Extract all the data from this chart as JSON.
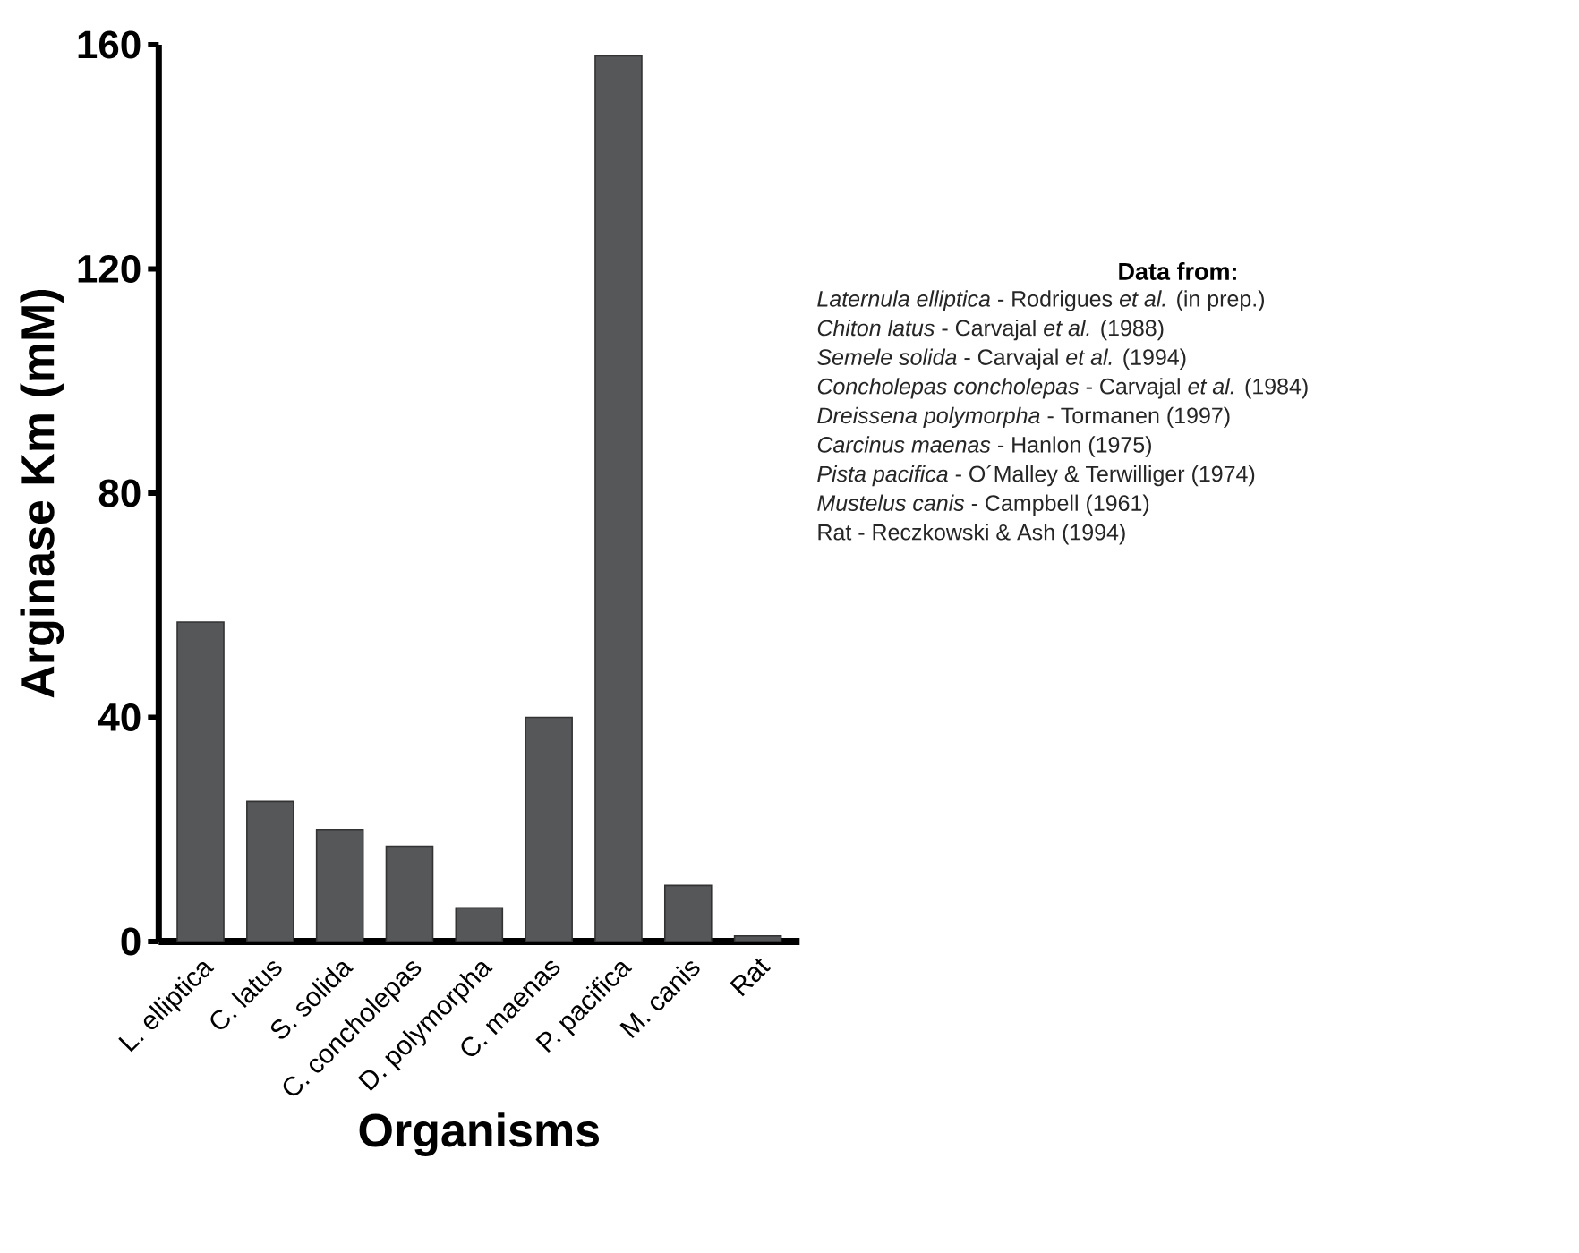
{
  "chart_data": {
    "type": "bar",
    "xlabel": "Organisms",
    "ylabel": "Arginase Km (mM)",
    "categories": [
      "L. elliptica",
      "C. latus",
      "S. solida",
      "C. concholepas",
      "D. polymorpha",
      "C. maenas",
      "P. pacifica",
      "M. canis",
      "Rat"
    ],
    "values": [
      57,
      25,
      20,
      17,
      6,
      40,
      158,
      10,
      1
    ],
    "color": "#555759",
    "ylim": [
      0,
      160
    ],
    "yticks": [
      0,
      40,
      80,
      120,
      160
    ],
    "grid": false,
    "annotations": [
      "Data from:",
      "*Laternula elliptica* - Rodrigues *et al.* (in prep.)",
      "*Chiton latus* - Carvajal *et al.* (1988)",
      "*Semele solida* - Carvajal *et al.* (1994)",
      "*Concholepas concholepas* - Carvajal *et al.* (1984)",
      "*Dreissena polymorpha* - Tormanen (1997)",
      "*Carcinus maenas* - Hanlon (1975)",
      "*Pista pacifica* - O´Malley & Terwilliger (1974)",
      "*Mustelus canis* - Campbell (1961)",
      "Rat - Reczkowski & Ash (1994)"
    ]
  }
}
